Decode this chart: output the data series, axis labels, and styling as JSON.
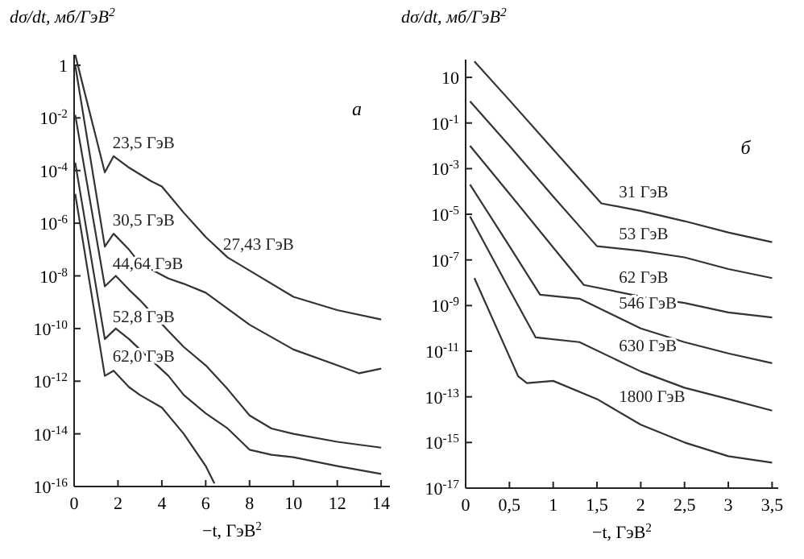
{
  "chart_data": [
    {
      "type": "line",
      "xlabel": "−t, ГэВ$^{2}$",
      "ylabel": "dσ/dt, мб/ГэВ$^{2}$",
      "annotations": [
        "а",
        {
          "text": "27,43 ГэВ",
          "x": 6.8,
          "y": 1e-07
        }
      ],
      "log": "y",
      "grid": false,
      "marker": "none",
      "line_style": "solid",
      "xlim": [
        0,
        14.4
      ],
      "ylim": [
        1e-16,
        2.5
      ],
      "xticks": [
        0,
        2,
        4,
        6,
        8,
        10,
        12,
        14
      ],
      "yticks": [
        1,
        {
          "value": 0.01,
          "label": "10$^{-2}$"
        },
        {
          "value": 0.0001,
          "label": "10$^{-4}$"
        },
        {
          "value": 1e-06,
          "label": "10$^{-6}$"
        },
        {
          "value": 1e-08,
          "label": "10$^{-8}$"
        },
        {
          "value": 1e-10,
          "label": "10$^{-10}$"
        },
        {
          "value": 1e-12,
          "label": "10$^{-12}$"
        },
        {
          "value": 1e-14,
          "label": "10$^{-14}$"
        },
        {
          "value": 1e-16,
          "label": "10$^{-16}$"
        }
      ],
      "series": [
        {
          "name": "23,5 ГэВ",
          "color": "#333333",
          "x": [
            0.05,
            0.5,
            1.0,
            1.4,
            1.8,
            2.5,
            3.5,
            4,
            5,
            6,
            7,
            8,
            10,
            12,
            14
          ],
          "values": [
            2.5,
            0.08,
            0.0018,
            8.5e-05,
            0.00035,
            0.00013,
            4e-05,
            2.5e-05,
            2.5e-06,
            3e-07,
            5e-08,
            1.6e-08,
            1.6e-09,
            5e-10,
            2.2e-10
          ]
        },
        {
          "name": "30,5 ГэВ",
          "color": "#333333",
          "x": [
            0.05,
            1.4,
            1.8,
            2.5,
            3.0,
            4.3,
            5,
            6,
            8,
            10,
            12,
            13,
            14
          ],
          "values": [
            1,
            1.3e-07,
            4e-07,
            1e-07,
            3e-08,
            8e-09,
            5e-09,
            2.3e-09,
            1.4e-10,
            1.6e-11,
            4e-12,
            2e-12,
            3e-12
          ]
        },
        {
          "name": "44,64 ГэВ",
          "color": "#333333",
          "x": [
            0.05,
            1.4,
            1.9,
            2.5,
            3.0,
            4.3,
            5,
            6,
            7,
            8,
            9,
            10,
            12,
            14
          ],
          "values": [
            0.013,
            4e-09,
            1e-08,
            3e-09,
            1.2e-09,
            8e-11,
            2e-11,
            4e-12,
            5e-13,
            5e-14,
            1.6e-14,
            1e-14,
            5e-15,
            3e-15
          ]
        },
        {
          "name": "52,8 ГэВ",
          "color": "#333333",
          "x": [
            0.05,
            1.4,
            1.9,
            2.5,
            3.0,
            4.3,
            5,
            6,
            7,
            8,
            9,
            10,
            12,
            14
          ],
          "values": [
            0.0002,
            4e-11,
            1e-10,
            4e-11,
            1.6e-11,
            1.6e-12,
            3e-13,
            6e-14,
            1.6e-14,
            2.5e-15,
            1.6e-15,
            1.3e-15,
            6e-16,
            3e-16
          ]
        },
        {
          "name": "62,0 ГэВ",
          "color": "#333333",
          "x": [
            0.05,
            1.4,
            1.8,
            2.5,
            3,
            4,
            5,
            6,
            6.4
          ],
          "values": [
            1.3e-05,
            1.6e-12,
            2.5e-12,
            6e-13,
            3e-13,
            1e-13,
            1e-14,
            6e-16,
            1.3e-16
          ]
        }
      ]
    },
    {
      "type": "line",
      "xlabel": "−t, ГэВ$^{2}$",
      "ylabel": "dσ/dt, мб/ГэВ$^{2}$",
      "annotations": [
        "б"
      ],
      "log": "y",
      "grid": false,
      "marker": "none",
      "line_style": "solid",
      "xlim": [
        0,
        3.57
      ],
      "ylim": [
        1e-17,
        60
      ],
      "xticks": [
        0,
        {
          "value": 0.5,
          "label": "0,5"
        },
        1,
        {
          "value": 1.5,
          "label": "1,5"
        },
        2,
        {
          "value": 2.5,
          "label": "2,5"
        },
        3,
        {
          "value": 3.5,
          "label": "3,5"
        }
      ],
      "yticks": [
        10,
        {
          "value": 0.1,
          "label": "10$^{-1}$"
        },
        {
          "value": 0.001,
          "label": "10$^{-3}$"
        },
        {
          "value": 1e-05,
          "label": "10$^{-5}$"
        },
        {
          "value": 1e-07,
          "label": "10$^{-7}$"
        },
        {
          "value": 1e-09,
          "label": "10$^{-9}$"
        },
        {
          "value": 1e-11,
          "label": "10$^{-11}$"
        },
        {
          "value": 1e-13,
          "label": "10$^{-13}$"
        },
        {
          "value": 1e-15,
          "label": "10$^{-15}$"
        },
        {
          "value": 1e-17,
          "label": "10$^{-17}$"
        }
      ],
      "series": [
        {
          "name": "31 ГэВ",
          "color": "#333333",
          "x": [
            0.1,
            0.5,
            1.0,
            1.55,
            2,
            2.5,
            3,
            3.5
          ],
          "values": [
            50,
            1,
            0.007,
            3e-05,
            1.4e-05,
            5e-06,
            1.6e-06,
            6e-07
          ]
        },
        {
          "name": "53 ГэВ",
          "color": "#333333",
          "x": [
            0.05,
            0.5,
            1.0,
            1.5,
            2,
            2.5,
            3,
            3.5
          ],
          "values": [
            0.9,
            0.01,
            6e-05,
            4e-07,
            2.5e-07,
            1.3e-07,
            4e-08,
            1.6e-08
          ]
        },
        {
          "name": "62 ГэВ",
          "color": "#333333",
          "x": [
            0.05,
            0.5,
            1.0,
            1.35,
            2,
            2.5,
            3,
            3.5
          ],
          "values": [
            0.01,
            8e-05,
            3.5e-07,
            8e-09,
            2.5e-09,
            1.3e-09,
            5e-10,
            3e-10
          ]
        },
        {
          "name": "546 ГэВ",
          "color": "#333333",
          "x": [
            0.05,
            0.5,
            0.85,
            1.3,
            2,
            2.5,
            3,
            3.5
          ],
          "values": [
            0.0002,
            4e-07,
            3e-09,
            2e-09,
            1e-10,
            2.5e-11,
            8e-12,
            3e-12
          ]
        },
        {
          "name": "630 ГэВ",
          "color": "#333333",
          "x": [
            0.05,
            0.5,
            0.8,
            1.3,
            2,
            2.5,
            3,
            3.5
          ],
          "values": [
            8e-06,
            5e-09,
            4e-11,
            2.5e-11,
            1.3e-12,
            2.5e-13,
            8e-14,
            2.5e-14
          ]
        },
        {
          "name": "1800 ГэВ",
          "color": "#333333",
          "x": [
            0.1,
            0.6,
            0.7,
            1.0,
            1.5,
            2,
            2.5,
            3,
            3.5
          ],
          "values": [
            1.6e-08,
            8e-13,
            4e-13,
            5e-13,
            8e-14,
            6e-15,
            1e-15,
            2.5e-16,
            1.3e-16
          ]
        }
      ]
    }
  ]
}
